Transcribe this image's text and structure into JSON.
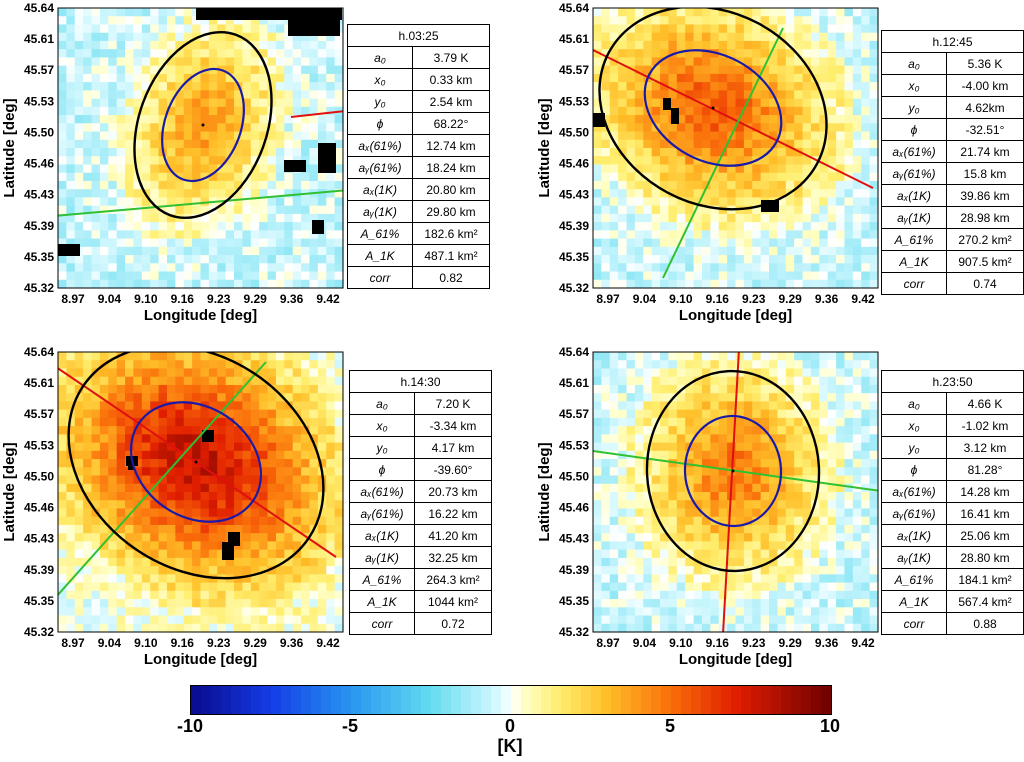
{
  "chart_data": [
    {
      "type": "heatmap",
      "title": "h.03:25",
      "xlabel": "Longitude [deg]",
      "ylabel": "Latitude [deg]",
      "xticks": [
        "8.97",
        "9.04",
        "9.10",
        "9.16",
        "9.23",
        "9.29",
        "9.36",
        "9.42"
      ],
      "yticks": [
        "45.64",
        "45.61",
        "45.57",
        "45.53",
        "45.50",
        "45.46",
        "45.43",
        "45.39",
        "45.35",
        "45.32"
      ],
      "xlim": [
        8.94,
        9.44
      ],
      "ylim": [
        45.32,
        45.64
      ],
      "center": [
        9.184,
        45.503
      ],
      "peak_K": 3.79,
      "params": [
        {
          "name": "a₀",
          "value": "3.79 K"
        },
        {
          "name": "x₀",
          "value": "0.33 km"
        },
        {
          "name": "y₀",
          "value": "2.54 km"
        },
        {
          "name": "ϕ",
          "value": "68.22°"
        },
        {
          "name": "aₓ(61%)",
          "value": "12.74 km"
        },
        {
          "name": "aᵧ(61%)",
          "value": "18.24 km"
        },
        {
          "name": "aₓ(1K)",
          "value": "20.80 km"
        },
        {
          "name": "aᵧ(1K)",
          "value": "29.80 km"
        },
        {
          "name": "A_61%",
          "value": "182.6 km²"
        },
        {
          "name": "A_1K",
          "value": "487.1 km²"
        },
        {
          "name": "corr",
          "value": "0.82"
        }
      ]
    },
    {
      "type": "heatmap",
      "title": "h.12:45",
      "xlabel": "Longitude [deg]",
      "ylabel": "Latitude [deg]",
      "xticks": [
        "8.97",
        "9.04",
        "9.10",
        "9.16",
        "9.23",
        "9.29",
        "9.36",
        "9.42"
      ],
      "yticks": [
        "45.64",
        "45.61",
        "45.57",
        "45.53",
        "45.50",
        "45.46",
        "45.43",
        "45.39",
        "45.35",
        "45.32"
      ],
      "xlim": [
        8.94,
        9.44
      ],
      "ylim": [
        45.32,
        45.64
      ],
      "center": [
        9.135,
        45.521
      ],
      "peak_K": 5.36,
      "params": [
        {
          "name": "a₀",
          "value": "5.36 K"
        },
        {
          "name": "x₀",
          "value": "-4.00 km"
        },
        {
          "name": "y₀",
          "value": "4.62km"
        },
        {
          "name": "ϕ",
          "value": "-32.51°"
        },
        {
          "name": "aₓ(61%)",
          "value": "21.74 km"
        },
        {
          "name": "aᵧ(61%)",
          "value": "15.8 km"
        },
        {
          "name": "aₓ(1K)",
          "value": "39.86 km"
        },
        {
          "name": "aᵧ(1K)",
          "value": "28.98 km"
        },
        {
          "name": "A_61%",
          "value": "270.2 km²"
        },
        {
          "name": "A_1K",
          "value": "907.5 km²"
        },
        {
          "name": "corr",
          "value": "0.74"
        }
      ]
    },
    {
      "type": "heatmap",
      "title": "h.14:30",
      "xlabel": "Longitude [deg]",
      "ylabel": "Latitude [deg]",
      "xticks": [
        "8.97",
        "9.04",
        "9.10",
        "9.16",
        "9.23",
        "9.29",
        "9.36",
        "9.42"
      ],
      "yticks": [
        "45.64",
        "45.61",
        "45.57",
        "45.53",
        "45.50",
        "45.46",
        "45.43",
        "45.39",
        "45.35",
        "45.32"
      ],
      "xlim": [
        8.94,
        9.44
      ],
      "ylim": [
        45.32,
        45.64
      ],
      "center": [
        9.143,
        45.519
      ],
      "peak_K": 7.2,
      "params": [
        {
          "name": "a₀",
          "value": "7.20 K"
        },
        {
          "name": "x₀",
          "value": "-3.34 km"
        },
        {
          "name": "y₀",
          "value": "4.17 km"
        },
        {
          "name": "ϕ",
          "value": "-39.60°"
        },
        {
          "name": "aₓ(61%)",
          "value": "20.73 km"
        },
        {
          "name": "aᵧ(61%)",
          "value": "16.22 km"
        },
        {
          "name": "aₓ(1K)",
          "value": "41.20 km"
        },
        {
          "name": "aᵧ(1K)",
          "value": "32.25 km"
        },
        {
          "name": "A_61%",
          "value": "264.3 km²"
        },
        {
          "name": "A_1K",
          "value": "1044 km²"
        },
        {
          "name": "corr",
          "value": "0.72"
        }
      ]
    },
    {
      "type": "heatmap",
      "title": "h.23:50",
      "xlabel": "Longitude [deg]",
      "ylabel": "Latitude [deg]",
      "xticks": [
        "8.97",
        "9.04",
        "9.10",
        "9.16",
        "9.23",
        "9.29",
        "9.36",
        "9.42"
      ],
      "yticks": [
        "45.64",
        "45.61",
        "45.57",
        "45.53",
        "45.50",
        "45.46",
        "45.43",
        "45.39",
        "45.35",
        "45.32"
      ],
      "xlim": [
        8.94,
        9.44
      ],
      "ylim": [
        45.32,
        45.64
      ],
      "center": [
        9.171,
        45.505
      ],
      "peak_K": 4.66,
      "params": [
        {
          "name": "a₀",
          "value": "4.66 K"
        },
        {
          "name": "x₀",
          "value": "-1.02 km"
        },
        {
          "name": "y₀",
          "value": "3.12 km"
        },
        {
          "name": "ϕ",
          "value": "81.28°"
        },
        {
          "name": "aₓ(61%)",
          "value": "14.28 km"
        },
        {
          "name": "aᵧ(61%)",
          "value": "16.41 km"
        },
        {
          "name": "aₓ(1K)",
          "value": "25.06 km"
        },
        {
          "name": "aᵧ(1K)",
          "value": "28.80 km"
        },
        {
          "name": "A_61%",
          "value": "184.1 km²"
        },
        {
          "name": "A_1K",
          "value": "567.4 km²"
        },
        {
          "name": "corr",
          "value": "0.88"
        }
      ]
    }
  ],
  "colorbar": {
    "label": "[K]",
    "ticks": [
      "-10",
      "-5",
      "0",
      "5",
      "10"
    ],
    "range": [
      -10,
      10
    ]
  },
  "colors": {
    "ellipse_61": "#1a1aa8",
    "ellipse_1k": "#000000",
    "major_axis": "#e01010",
    "minor_axis": "#30c030"
  }
}
